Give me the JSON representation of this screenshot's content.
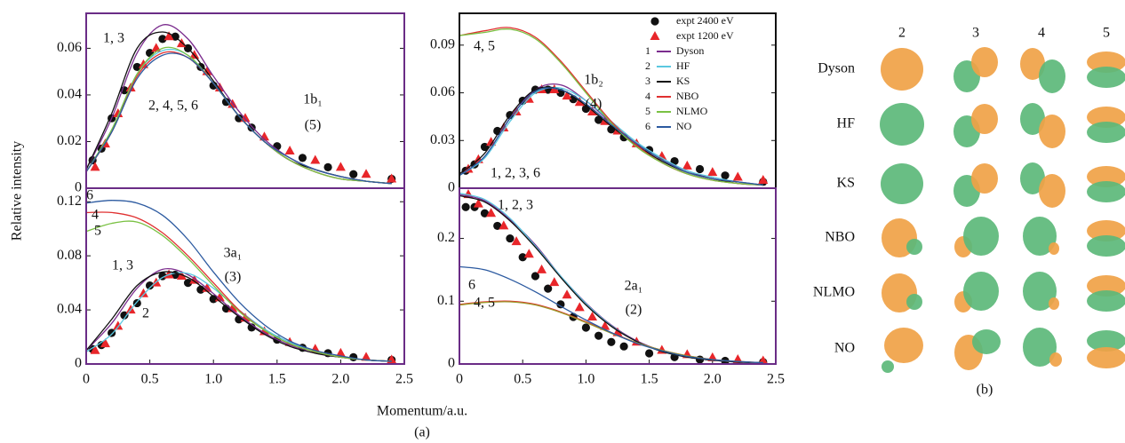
{
  "figure": {
    "y_label": "Relative intensity",
    "x_label": "Momentum/a.u.",
    "panel_label": "(a)"
  },
  "orbital_panel": {
    "label": "(b)",
    "columns": [
      "2",
      "3",
      "4",
      "5"
    ],
    "rows": [
      "Dyson",
      "HF",
      "KS",
      "NBO",
      "NLMO",
      "NO"
    ]
  },
  "chart_data": [
    {
      "type": "line",
      "frame_color": "#6a2c86",
      "x": [
        0,
        0.2,
        0.4,
        0.6,
        0.8,
        1.0,
        1.2,
        1.4,
        1.6,
        1.8,
        2.0,
        2.2,
        2.4
      ],
      "xlim": [
        0,
        2.5
      ],
      "ylim": [
        0,
        0.075
      ],
      "yticks": [
        0,
        0.02,
        0.04,
        0.06
      ],
      "series": [
        {
          "name": "expt 2400 eV",
          "marker": "circle",
          "color": "#111111",
          "x": [
            0.05,
            0.12,
            0.2,
            0.3,
            0.4,
            0.5,
            0.6,
            0.7,
            0.8,
            0.9,
            1.0,
            1.1,
            1.2,
            1.3,
            1.5,
            1.7,
            1.9,
            2.1,
            2.4
          ],
          "values": [
            0.012,
            0.017,
            0.03,
            0.042,
            0.052,
            0.058,
            0.064,
            0.065,
            0.06,
            0.052,
            0.044,
            0.037,
            0.03,
            0.026,
            0.018,
            0.013,
            0.009,
            0.006,
            0.004
          ]
        },
        {
          "name": "expt 1200 eV",
          "marker": "triangle",
          "color": "#e8262a",
          "x": [
            0.07,
            0.15,
            0.25,
            0.35,
            0.45,
            0.55,
            0.65,
            0.75,
            0.85,
            0.95,
            1.05,
            1.15,
            1.25,
            1.4,
            1.6,
            1.8,
            2.0,
            2.2,
            2.4
          ],
          "values": [
            0.009,
            0.019,
            0.032,
            0.043,
            0.053,
            0.06,
            0.065,
            0.062,
            0.057,
            0.05,
            0.043,
            0.036,
            0.03,
            0.022,
            0.016,
            0.012,
            0.009,
            0.006,
            0.004
          ]
        },
        {
          "name": "Dyson",
          "number": 1,
          "color": "#7b2d8e",
          "values": [
            0.008,
            0.03,
            0.058,
            0.07,
            0.064,
            0.048,
            0.033,
            0.021,
            0.013,
            0.008,
            0.005,
            0.003,
            0.002
          ]
        },
        {
          "name": "HF",
          "number": 2,
          "color": "#5bc8e0",
          "values": [
            0.007,
            0.025,
            0.049,
            0.059,
            0.057,
            0.045,
            0.031,
            0.02,
            0.012,
            0.007,
            0.004,
            0.003,
            0.002
          ]
        },
        {
          "name": "KS",
          "number": 3,
          "color": "#111111",
          "values": [
            0.008,
            0.032,
            0.06,
            0.067,
            0.06,
            0.046,
            0.031,
            0.02,
            0.012,
            0.008,
            0.005,
            0.003,
            0.002
          ]
        },
        {
          "name": "NBO",
          "number": 4,
          "color": "#e03030",
          "values": [
            0.007,
            0.024,
            0.048,
            0.058,
            0.056,
            0.045,
            0.031,
            0.02,
            0.012,
            0.007,
            0.004,
            0.003,
            0.002
          ]
        },
        {
          "name": "NLMO",
          "number": 5,
          "color": "#7ac143",
          "values": [
            0.007,
            0.025,
            0.049,
            0.06,
            0.057,
            0.045,
            0.031,
            0.02,
            0.012,
            0.007,
            0.004,
            0.003,
            0.002
          ]
        },
        {
          "name": "NO",
          "number": 6,
          "color": "#2c5aa0",
          "values": [
            0.007,
            0.024,
            0.047,
            0.057,
            0.056,
            0.045,
            0.031,
            0.02,
            0.013,
            0.008,
            0.005,
            0.003,
            0.002
          ]
        }
      ],
      "annotations": [
        "1, 3",
        "2, 4, 5, 6",
        "1b₁",
        "(5)"
      ]
    },
    {
      "type": "line",
      "frame_color": "#111111",
      "legend": "upper right",
      "x": [
        0,
        0.2,
        0.4,
        0.6,
        0.8,
        1.0,
        1.2,
        1.4,
        1.6,
        1.8,
        2.0,
        2.2,
        2.4
      ],
      "xlim": [
        0,
        2.5
      ],
      "ylim": [
        0,
        0.11
      ],
      "yticks": [
        0,
        0.03,
        0.06,
        0.09
      ],
      "series": [
        {
          "name": "expt 2400 eV",
          "marker": "circle",
          "color": "#111111",
          "x": [
            0.05,
            0.12,
            0.2,
            0.3,
            0.4,
            0.5,
            0.6,
            0.7,
            0.8,
            0.9,
            1.0,
            1.1,
            1.2,
            1.3,
            1.5,
            1.7,
            1.9,
            2.1,
            2.4
          ],
          "values": [
            0.011,
            0.015,
            0.026,
            0.036,
            0.046,
            0.055,
            0.062,
            0.062,
            0.06,
            0.056,
            0.05,
            0.043,
            0.037,
            0.032,
            0.024,
            0.017,
            0.012,
            0.008,
            0.004
          ]
        },
        {
          "name": "expt 1200 eV",
          "marker": "triangle",
          "color": "#e8262a",
          "x": [
            0.07,
            0.15,
            0.25,
            0.35,
            0.45,
            0.55,
            0.65,
            0.75,
            0.85,
            0.95,
            1.05,
            1.15,
            1.25,
            1.4,
            1.6,
            1.8,
            2.0,
            2.2,
            2.4
          ],
          "values": [
            0.012,
            0.018,
            0.029,
            0.038,
            0.048,
            0.056,
            0.062,
            0.062,
            0.058,
            0.054,
            0.048,
            0.042,
            0.036,
            0.028,
            0.02,
            0.014,
            0.01,
            0.007,
            0.005
          ]
        },
        {
          "name": "Dyson",
          "number": 1,
          "color": "#7b2d8e",
          "values": [
            0.008,
            0.02,
            0.044,
            0.062,
            0.065,
            0.055,
            0.041,
            0.028,
            0.018,
            0.011,
            0.006,
            0.004,
            0.002
          ]
        },
        {
          "name": "HF",
          "number": 2,
          "color": "#5bc8e0",
          "values": [
            0.008,
            0.019,
            0.042,
            0.06,
            0.063,
            0.055,
            0.042,
            0.029,
            0.019,
            0.011,
            0.007,
            0.004,
            0.002
          ]
        },
        {
          "name": "KS",
          "number": 3,
          "color": "#111111",
          "values": [
            0.009,
            0.022,
            0.046,
            0.062,
            0.062,
            0.052,
            0.039,
            0.027,
            0.017,
            0.01,
            0.006,
            0.003,
            0.002
          ]
        },
        {
          "name": "NBO",
          "number": 4,
          "color": "#e03030",
          "values": [
            0.096,
            0.099,
            0.101,
            0.095,
            0.08,
            0.061,
            0.042,
            0.027,
            0.016,
            0.009,
            0.005,
            0.003,
            0.002
          ]
        },
        {
          "name": "NLMO",
          "number": 5,
          "color": "#7ac143",
          "values": [
            0.096,
            0.098,
            0.1,
            0.094,
            0.079,
            0.06,
            0.041,
            0.026,
            0.016,
            0.009,
            0.005,
            0.003,
            0.002
          ]
        },
        {
          "name": "NO",
          "number": 6,
          "color": "#2c5aa0",
          "values": [
            0.008,
            0.02,
            0.044,
            0.061,
            0.062,
            0.053,
            0.04,
            0.028,
            0.018,
            0.01,
            0.006,
            0.004,
            0.002
          ]
        }
      ],
      "annotations": [
        "4, 5",
        "1b₂",
        "(4)",
        "1, 2, 3, 6"
      ]
    },
    {
      "type": "line",
      "frame_color": "#6a2c86",
      "x": [
        0,
        0.2,
        0.4,
        0.6,
        0.8,
        1.0,
        1.2,
        1.4,
        1.6,
        1.8,
        2.0,
        2.2,
        2.4
      ],
      "xlim": [
        0,
        2.5
      ],
      "ylim": [
        0,
        0.13
      ],
      "yticks": [
        0,
        0.04,
        0.08,
        0.12
      ],
      "xticks": [
        0,
        0.5,
        {
          "value": 1,
          "label": "1.0"
        },
        1.5,
        {
          "value": 2,
          "label": "2.0"
        },
        2.5
      ],
      "series": [
        {
          "name": "expt 2400 eV",
          "marker": "circle",
          "color": "#111111",
          "x": [
            0.05,
            0.12,
            0.2,
            0.3,
            0.4,
            0.5,
            0.6,
            0.7,
            0.8,
            0.9,
            1.0,
            1.1,
            1.2,
            1.3,
            1.5,
            1.7,
            1.9,
            2.1,
            2.4
          ],
          "values": [
            0.011,
            0.014,
            0.023,
            0.036,
            0.045,
            0.058,
            0.065,
            0.066,
            0.06,
            0.055,
            0.048,
            0.041,
            0.033,
            0.027,
            0.018,
            0.012,
            0.008,
            0.005,
            0.003
          ]
        },
        {
          "name": "expt 1200 eV",
          "marker": "triangle",
          "color": "#e8262a",
          "x": [
            0.07,
            0.15,
            0.25,
            0.35,
            0.45,
            0.55,
            0.65,
            0.75,
            0.85,
            0.95,
            1.05,
            1.15,
            1.25,
            1.4,
            1.6,
            1.8,
            2.0,
            2.2,
            2.4
          ],
          "values": [
            0.01,
            0.015,
            0.028,
            0.04,
            0.052,
            0.06,
            0.066,
            0.065,
            0.062,
            0.056,
            0.049,
            0.041,
            0.034,
            0.024,
            0.016,
            0.011,
            0.008,
            0.005,
            0.003
          ]
        },
        {
          "name": "Dyson",
          "number": 1,
          "color": "#7b2d8e",
          "values": [
            0.01,
            0.03,
            0.056,
            0.07,
            0.066,
            0.052,
            0.036,
            0.023,
            0.014,
            0.008,
            0.005,
            0.003,
            0.002
          ]
        },
        {
          "name": "HF",
          "number": 2,
          "color": "#5bc8e0",
          "values": [
            0.009,
            0.022,
            0.046,
            0.064,
            0.067,
            0.056,
            0.04,
            0.026,
            0.016,
            0.009,
            0.005,
            0.003,
            0.002
          ]
        },
        {
          "name": "KS",
          "number": 3,
          "color": "#111111",
          "values": [
            0.01,
            0.033,
            0.058,
            0.068,
            0.064,
            0.05,
            0.035,
            0.022,
            0.013,
            0.008,
            0.005,
            0.003,
            0.002
          ]
        },
        {
          "name": "NBO",
          "number": 4,
          "color": "#e03030",
          "values": [
            0.112,
            0.112,
            0.108,
            0.097,
            0.08,
            0.06,
            0.04,
            0.025,
            0.015,
            0.009,
            0.005,
            0.003,
            0.002
          ]
        },
        {
          "name": "NLMO",
          "number": 5,
          "color": "#7ac143",
          "values": [
            0.098,
            0.104,
            0.105,
            0.095,
            0.078,
            0.058,
            0.039,
            0.025,
            0.015,
            0.009,
            0.005,
            0.003,
            0.002
          ]
        },
        {
          "name": "NO",
          "number": 6,
          "color": "#2c5aa0",
          "values": [
            0.119,
            0.121,
            0.119,
            0.11,
            0.092,
            0.068,
            0.046,
            0.029,
            0.017,
            0.01,
            0.006,
            0.003,
            0.002
          ]
        }
      ],
      "annotations": [
        "6",
        "4",
        "5",
        "3a₁",
        "(3)",
        "1, 3",
        "2"
      ]
    },
    {
      "type": "line",
      "frame_color": "#6a2c86",
      "x": [
        0,
        0.2,
        0.4,
        0.6,
        0.8,
        1.0,
        1.2,
        1.4,
        1.6,
        1.8,
        2.0,
        2.2,
        2.4
      ],
      "xlim": [
        0,
        2.5
      ],
      "ylim": [
        0,
        0.28
      ],
      "yticks": [
        0,
        0.1,
        0.2
      ],
      "xticks": [
        0,
        0.5,
        {
          "value": 1,
          "label": "1.0"
        },
        1.5,
        {
          "value": 2,
          "label": "2.0"
        },
        2.5
      ],
      "series": [
        {
          "name": "expt 2400 eV",
          "marker": "circle",
          "color": "#111111",
          "x": [
            0.05,
            0.12,
            0.2,
            0.3,
            0.4,
            0.5,
            0.6,
            0.7,
            0.8,
            0.9,
            1.0,
            1.1,
            1.2,
            1.3,
            1.5,
            1.7,
            1.9,
            2.1,
            2.4
          ],
          "values": [
            0.25,
            0.25,
            0.24,
            0.22,
            0.2,
            0.17,
            0.14,
            0.12,
            0.095,
            0.075,
            0.058,
            0.045,
            0.035,
            0.028,
            0.017,
            0.011,
            0.007,
            0.005,
            0.003
          ]
        },
        {
          "name": "expt 1200 eV",
          "marker": "triangle",
          "color": "#e8262a",
          "x": [
            0.07,
            0.15,
            0.25,
            0.35,
            0.45,
            0.55,
            0.65,
            0.75,
            0.85,
            0.95,
            1.05,
            1.15,
            1.25,
            1.4,
            1.6,
            1.8,
            2.0,
            2.2,
            2.4
          ],
          "values": [
            0.27,
            0.255,
            0.24,
            0.22,
            0.195,
            0.175,
            0.15,
            0.13,
            0.11,
            0.09,
            0.075,
            0.06,
            0.05,
            0.035,
            0.022,
            0.015,
            0.01,
            0.007,
            0.005
          ]
        },
        {
          "name": "Dyson",
          "number": 1,
          "color": "#7b2d8e",
          "values": [
            0.27,
            0.26,
            0.23,
            0.19,
            0.14,
            0.097,
            0.062,
            0.037,
            0.021,
            0.011,
            0.006,
            0.003,
            0.002
          ]
        },
        {
          "name": "HF",
          "number": 2,
          "color": "#5bc8e0",
          "values": [
            0.272,
            0.262,
            0.232,
            0.188,
            0.14,
            0.096,
            0.061,
            0.036,
            0.02,
            0.011,
            0.006,
            0.003,
            0.002
          ]
        },
        {
          "name": "KS",
          "number": 3,
          "color": "#111111",
          "values": [
            0.268,
            0.258,
            0.228,
            0.186,
            0.138,
            0.094,
            0.06,
            0.036,
            0.02,
            0.011,
            0.006,
            0.003,
            0.002
          ]
        },
        {
          "name": "NBO",
          "number": 4,
          "color": "#e03030",
          "values": [
            0.095,
            0.099,
            0.1,
            0.095,
            0.083,
            0.067,
            0.05,
            0.034,
            0.022,
            0.013,
            0.007,
            0.004,
            0.002
          ]
        },
        {
          "name": "NLMO",
          "number": 5,
          "color": "#9a9a2a",
          "values": [
            0.094,
            0.098,
            0.099,
            0.094,
            0.082,
            0.066,
            0.049,
            0.034,
            0.022,
            0.013,
            0.007,
            0.004,
            0.002
          ]
        },
        {
          "name": "NO",
          "number": 6,
          "color": "#2c5aa0",
          "values": [
            0.155,
            0.15,
            0.135,
            0.115,
            0.092,
            0.07,
            0.05,
            0.033,
            0.021,
            0.012,
            0.007,
            0.004,
            0.002
          ]
        }
      ],
      "annotations": [
        "1, 2, 3",
        "6",
        "4, 5",
        "2a₁",
        "(2)"
      ]
    }
  ]
}
